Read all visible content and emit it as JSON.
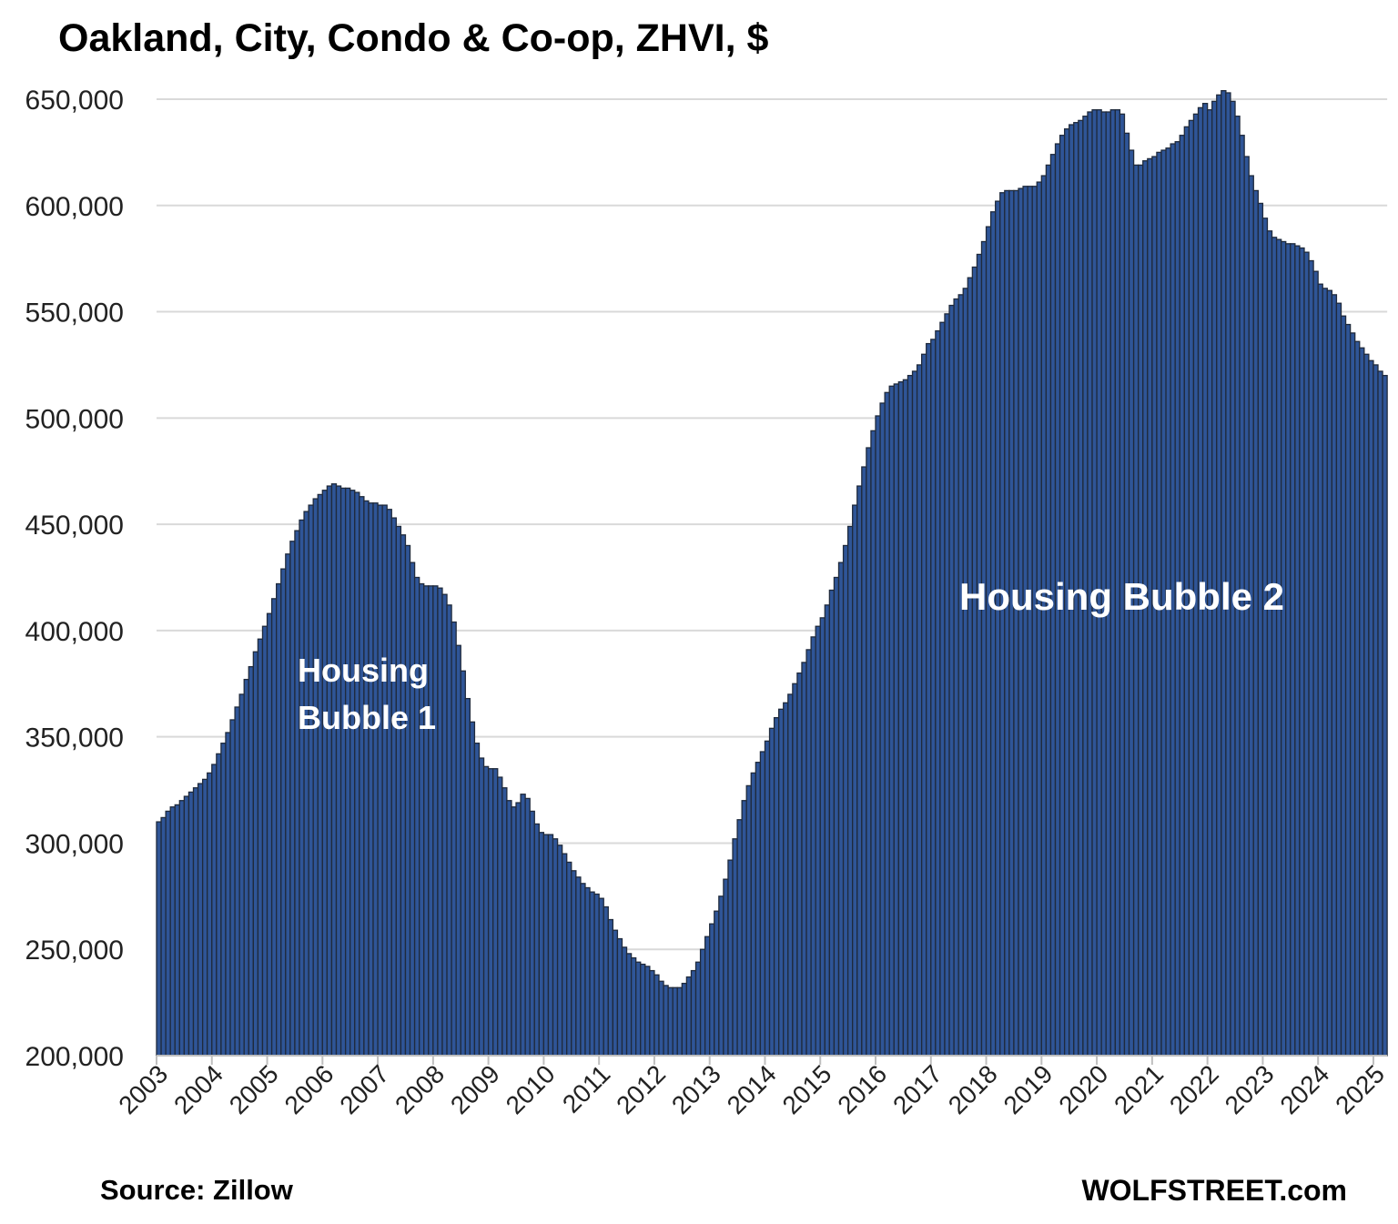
{
  "chart_data": {
    "type": "bar",
    "title": "Oakland, City, Condo & Co-op, ZHVI, $",
    "xlabel": "",
    "ylabel": "",
    "ylim": [
      200000,
      650000
    ],
    "yticks": [
      "200,000",
      "250,000",
      "300,000",
      "350,000",
      "400,000",
      "450,000",
      "500,000",
      "550,000",
      "600,000",
      "650,000"
    ],
    "xticks": [
      "2003",
      "2004",
      "2005",
      "2006",
      "2007",
      "2008",
      "2009",
      "2010",
      "2011",
      "2012",
      "2013",
      "2014",
      "2015",
      "2016",
      "2017",
      "2018",
      "2019",
      "2020",
      "2021",
      "2022",
      "2023",
      "2024",
      "2025"
    ],
    "frequency": "monthly",
    "start": "2003-01",
    "grid": true,
    "bar_color": "#2f5597",
    "bar_edge_color": "#1f2a3c",
    "values": [
      310000,
      312000,
      315000,
      317000,
      318000,
      320000,
      322000,
      324000,
      326000,
      328000,
      330000,
      333000,
      337000,
      342000,
      347000,
      352000,
      358000,
      364000,
      370000,
      377000,
      383000,
      390000,
      396000,
      402000,
      408000,
      415000,
      422000,
      429000,
      436000,
      442000,
      447000,
      452000,
      456000,
      459000,
      462000,
      464000,
      466000,
      468000,
      469000,
      468000,
      467000,
      467000,
      466000,
      465000,
      463000,
      461000,
      460000,
      460000,
      459000,
      459000,
      457000,
      453000,
      449000,
      445000,
      440000,
      432000,
      425000,
      422000,
      421000,
      421000,
      421000,
      420000,
      417000,
      412000,
      404000,
      393000,
      381000,
      368000,
      357000,
      347000,
      340000,
      336000,
      335000,
      335000,
      331000,
      326000,
      320000,
      317000,
      319000,
      323000,
      321000,
      315000,
      309000,
      305000,
      304000,
      304000,
      302000,
      299000,
      295000,
      291000,
      287000,
      284000,
      281000,
      279000,
      277000,
      276000,
      274000,
      270000,
      264000,
      259000,
      255000,
      251000,
      248000,
      246000,
      244000,
      243000,
      242000,
      240000,
      238000,
      235000,
      233000,
      232000,
      232000,
      232000,
      234000,
      237000,
      240000,
      244000,
      250000,
      256000,
      262000,
      268000,
      275000,
      283000,
      292000,
      302000,
      311000,
      320000,
      327000,
      333000,
      338000,
      343000,
      348000,
      354000,
      359000,
      363000,
      366000,
      370000,
      375000,
      380000,
      385000,
      391000,
      397000,
      402000,
      406000,
      412000,
      419000,
      425000,
      432000,
      440000,
      449000,
      459000,
      468000,
      477000,
      486000,
      494000,
      501000,
      507000,
      512000,
      515000,
      516000,
      517000,
      518000,
      520000,
      522000,
      525000,
      530000,
      535000,
      537000,
      541000,
      545000,
      549000,
      553000,
      556000,
      558000,
      561000,
      566000,
      571000,
      577000,
      583000,
      590000,
      597000,
      602000,
      606000,
      607000,
      607000,
      607000,
      608000,
      609000,
      609000,
      609000,
      611000,
      614000,
      619000,
      624000,
      629000,
      633000,
      636000,
      638000,
      639000,
      640000,
      642000,
      644000,
      645000,
      645000,
      644000,
      644000,
      645000,
      645000,
      643000,
      634000,
      626000,
      619000,
      619000,
      621000,
      622000,
      623000,
      625000,
      626000,
      627000,
      629000,
      630000,
      633000,
      637000,
      640000,
      643000,
      646000,
      648000,
      645000,
      649000,
      652000,
      654000,
      653000,
      649000,
      642000,
      633000,
      623000,
      614000,
      607000,
      601000,
      594000,
      588000,
      585000,
      584000,
      583000,
      582000,
      582000,
      581000,
      580000,
      578000,
      574000,
      569000,
      563000,
      561000,
      560000,
      558000,
      554000,
      548000,
      544000,
      540000,
      536000,
      533000,
      530000,
      527000,
      525000,
      522000,
      520000
    ],
    "annotations": [
      {
        "text_lines": [
          "Housing",
          "Bubble 1"
        ]
      },
      {
        "text_lines": [
          "Housing Bubble 2"
        ]
      }
    ]
  },
  "footer": {
    "source": "Source: Zillow",
    "brand": "WOLFSTREET.com"
  }
}
